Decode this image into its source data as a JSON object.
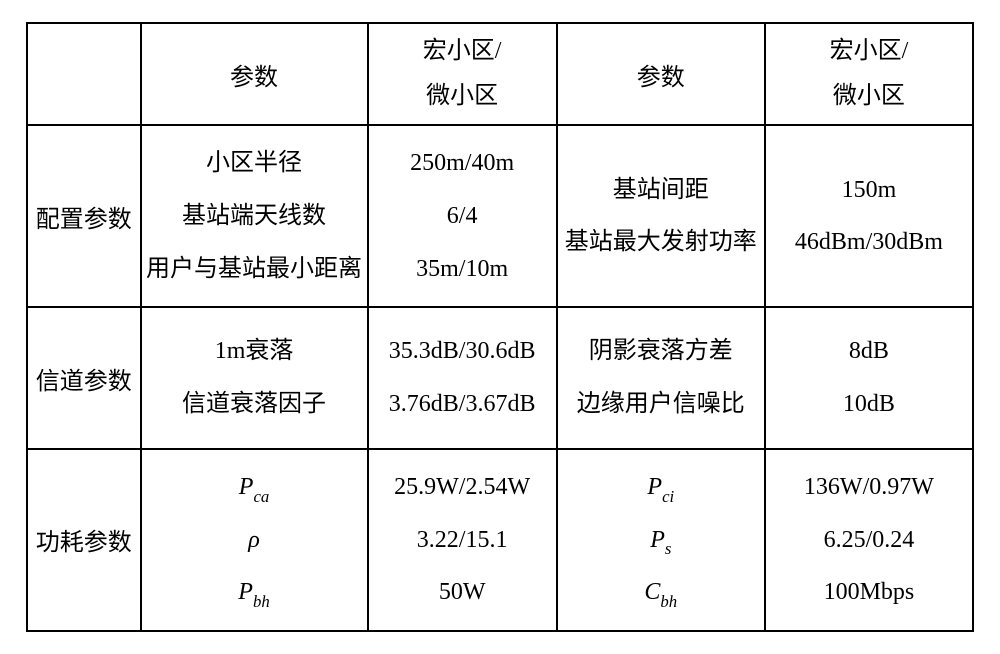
{
  "table": {
    "font_family": "SimSun / Times New Roman",
    "font_size_pt": 18,
    "border_color": "#000000",
    "background_color": "#ffffff",
    "text_color": "#000000",
    "columns": [
      "category",
      "param1",
      "value1",
      "param2",
      "value2"
    ],
    "header": {
      "category": "",
      "param1": "参数",
      "value1_line1": "宏小区/",
      "value1_line2": "微小区",
      "param2": "参数",
      "value2_line1": "宏小区/",
      "value2_line2": "微小区"
    },
    "rows": {
      "config": {
        "category": "配置参数",
        "p1_l1": "小区半径",
        "p1_l2": "基站端天线数",
        "p1_l3": "用户与基站最小距离",
        "v1_l1": "250m/40m",
        "v1_l2": "6/4",
        "v1_l3": "35m/10m",
        "p2_l1": "基站间距",
        "p2_l2": "基站最大发射功率",
        "v2_l1": "150m",
        "v2_l2": "46dBm/30dBm"
      },
      "channel": {
        "category": "信道参数",
        "p1_l1": "1m衰落",
        "p1_l2": "信道衰落因子",
        "v1_l1": "35.3dB/30.6dB",
        "v1_l2": "3.76dB/3.67dB",
        "p2_l1": "阴影衰落方差",
        "p2_l2": "边缘用户信噪比",
        "v2_l1": "8dB",
        "v2_l2": "10dB"
      },
      "power": {
        "category": "功耗参数",
        "p1_l1_sym": "P",
        "p1_l1_sub": "ca",
        "p1_l2_sym": "ρ",
        "p1_l3_sym": "P",
        "p1_l3_sub": "bh",
        "v1_l1": "25.9W/2.54W",
        "v1_l2": "3.22/15.1",
        "v1_l3": "50W",
        "p2_l1_sym": "P",
        "p2_l1_sub": "ci",
        "p2_l2_sym": "P",
        "p2_l2_sub": "s",
        "p2_l3_sym": "C",
        "p2_l3_sub": "bh",
        "v2_l1": "136W/0.97W",
        "v2_l2": "6.25/0.24",
        "v2_l3": "100Mbps"
      }
    }
  }
}
